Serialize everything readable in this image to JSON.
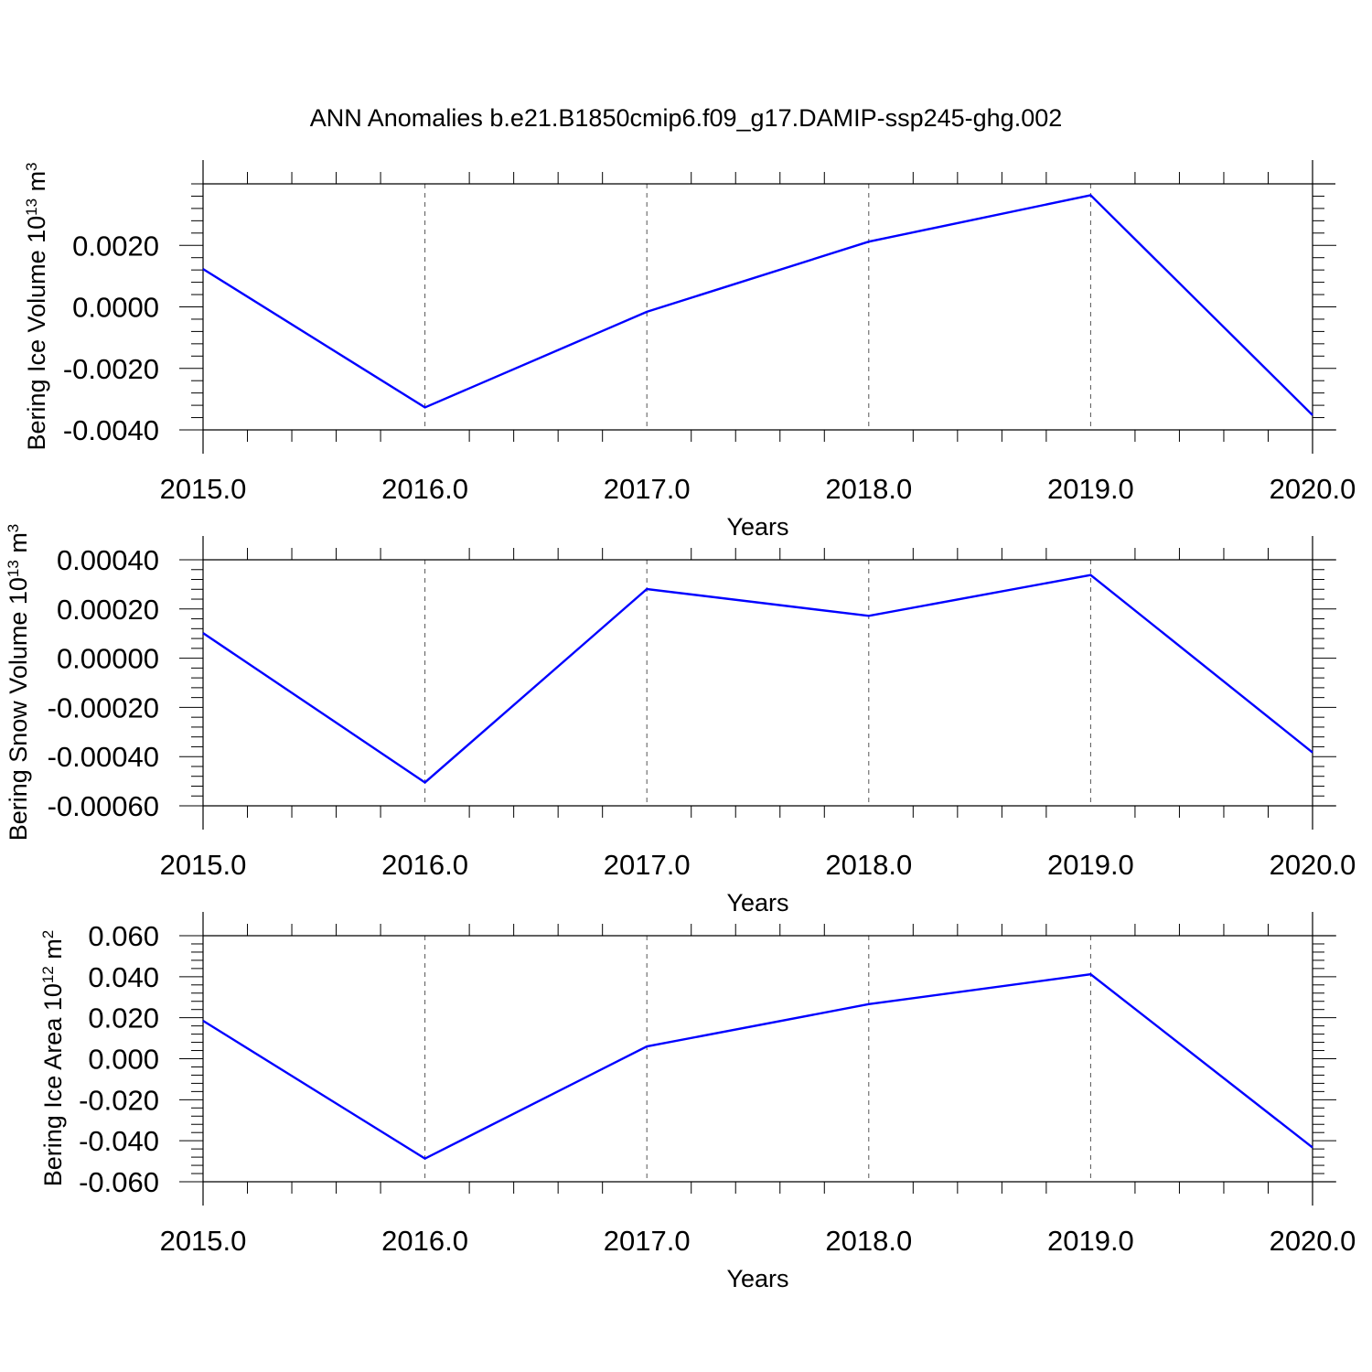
{
  "title": "ANN Anomalies b.e21.B1850cmip6.f09_g17.DAMIP-ssp245-ghg.002",
  "colors": {
    "series": "#0000ff",
    "axis": "#000000",
    "grid": "#555555"
  },
  "chart_data": [
    {
      "type": "line",
      "x": [
        2015.0,
        2016.0,
        2017.0,
        2018.0,
        2019.0,
        2020.0
      ],
      "values": [
        0.00123,
        -0.00327,
        -0.00016,
        0.00212,
        0.00363,
        -0.00352
      ],
      "xlabel": "Years",
      "ylabel_text": "Bering Ice Volume 10",
      "ylabel_exp": "13",
      "ylabel_unit": " m",
      "ylabel_unit_exp": "3",
      "xlim": [
        2015.0,
        2020.0
      ],
      "ylim": [
        -0.004,
        0.004
      ],
      "xticks": [
        "2015.0",
        "2016.0",
        "2017.0",
        "2018.0",
        "2019.0",
        "2020.0"
      ],
      "yticks": [
        {
          "value": -0.004,
          "label": "-0.0040"
        },
        {
          "value": -0.002,
          "label": "-0.0020"
        },
        {
          "value": 0.0,
          "label": "0.0000"
        },
        {
          "value": 0.002,
          "label": "0.0020"
        }
      ],
      "ytick_minor_step": 0.0004,
      "grid": "vertical dashed"
    },
    {
      "type": "line",
      "x": [
        2015.0,
        2016.0,
        2017.0,
        2018.0,
        2019.0,
        2020.0
      ],
      "values": [
        0.000102,
        -0.000505,
        0.000281,
        0.000172,
        0.000338,
        -0.000383
      ],
      "xlabel": "Years",
      "ylabel_text": "Bering Snow Volume 10",
      "ylabel_exp": "13",
      "ylabel_unit": " m",
      "ylabel_unit_exp": "3",
      "xlim": [
        2015.0,
        2020.0
      ],
      "ylim": [
        -0.0006,
        0.0004
      ],
      "xticks": [
        "2015.0",
        "2016.0",
        "2017.0",
        "2018.0",
        "2019.0",
        "2020.0"
      ],
      "yticks": [
        {
          "value": -0.0006,
          "label": "-0.00060"
        },
        {
          "value": -0.0004,
          "label": "-0.00040"
        },
        {
          "value": -0.0002,
          "label": "-0.00020"
        },
        {
          "value": 0.0,
          "label": "0.00000"
        },
        {
          "value": 0.0002,
          "label": "0.00020"
        },
        {
          "value": 0.0004,
          "label": "0.00040"
        }
      ],
      "ytick_minor_step": 4e-05,
      "grid": "vertical dashed"
    },
    {
      "type": "line",
      "x": [
        2015.0,
        2016.0,
        2017.0,
        2018.0,
        2019.0,
        2020.0
      ],
      "values": [
        0.0185,
        -0.0487,
        0.006,
        0.0266,
        0.0412,
        -0.0433
      ],
      "xlabel": "Years",
      "ylabel_text": "Bering Ice Area 10",
      "ylabel_exp": "12",
      "ylabel_unit": " m",
      "ylabel_unit_exp": "2",
      "xlim": [
        2015.0,
        2020.0
      ],
      "ylim": [
        -0.06,
        0.06
      ],
      "xticks": [
        "2015.0",
        "2016.0",
        "2017.0",
        "2018.0",
        "2019.0",
        "2020.0"
      ],
      "yticks": [
        {
          "value": -0.06,
          "label": "-0.060"
        },
        {
          "value": -0.04,
          "label": "-0.040"
        },
        {
          "value": -0.02,
          "label": "-0.020"
        },
        {
          "value": 0.0,
          "label": "0.000"
        },
        {
          "value": 0.02,
          "label": "0.020"
        },
        {
          "value": 0.04,
          "label": "0.040"
        },
        {
          "value": 0.06,
          "label": "0.060"
        }
      ],
      "ytick_minor_step": 0.004,
      "grid": "vertical dashed"
    }
  ]
}
